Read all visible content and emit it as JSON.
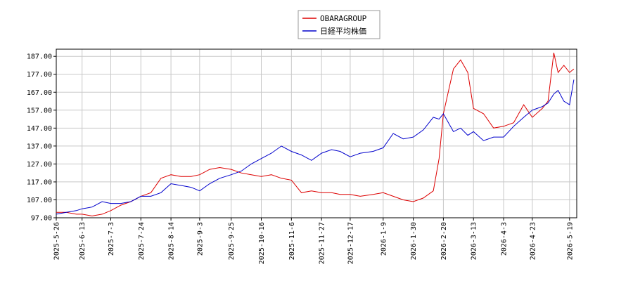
{
  "chart_data": {
    "type": "line",
    "x": [
      "2025-5-26",
      "2025-6-2",
      "2025-6-9",
      "2025-6-13",
      "2025-6-20",
      "2025-6-27",
      "2025-7-3",
      "2025-7-10",
      "2025-7-17",
      "2025-7-24",
      "2025-7-31",
      "2025-8-7",
      "2025-8-14",
      "2025-8-21",
      "2025-8-28",
      "2025-9-3",
      "2025-9-10",
      "2025-9-17",
      "2025-9-25",
      "2025-10-2",
      "2025-10-9",
      "2025-10-16",
      "2025-10-23",
      "2025-10-30",
      "2025-11-6",
      "2025-11-13",
      "2025-11-20",
      "2025-11-27",
      "2025-12-4",
      "2025-12-10",
      "2025-12-17",
      "2025-12-24",
      "2026-1-2",
      "2026-1-9",
      "2026-1-16",
      "2026-1-23",
      "2026-1-30",
      "2026-2-6",
      "2026-2-13",
      "2026-2-17",
      "2026-2-20",
      "2026-2-27",
      "2026-3-4",
      "2026-3-9",
      "2026-3-13",
      "2026-3-20",
      "2026-3-27",
      "2026-4-3",
      "2026-4-10",
      "2026-4-17",
      "2026-4-23",
      "2026-4-30",
      "2026-5-4",
      "2026-5-8",
      "2026-5-11",
      "2026-5-15",
      "2026-5-19",
      "2026-5-22"
    ],
    "series": [
      {
        "name": "OBARAGROUP",
        "color": "#dd0000",
        "values": [
          100,
          100,
          99,
          99,
          98,
          99,
          101,
          104,
          106,
          109,
          111,
          119,
          121,
          120,
          120,
          121,
          124,
          125,
          124,
          122,
          121,
          120,
          121,
          119,
          118,
          111,
          112,
          111,
          111,
          110,
          110,
          109,
          110,
          111,
          109,
          107,
          106,
          108,
          112,
          130,
          155,
          180,
          185,
          178,
          158,
          155,
          147,
          148,
          150,
          160,
          153,
          158,
          162,
          189,
          178,
          182,
          178,
          180
        ]
      },
      {
        "name": "日経平均株価",
        "color": "#0000cc",
        "values": [
          99,
          100,
          101,
          102,
          103,
          106,
          105,
          105,
          106,
          109,
          109,
          111,
          116,
          115,
          114,
          112,
          116,
          119,
          121,
          123,
          127,
          130,
          133,
          137,
          134,
          132,
          129,
          133,
          135,
          134,
          131,
          133,
          134,
          136,
          144,
          141,
          142,
          146,
          153,
          152,
          155,
          145,
          147,
          143,
          145,
          140,
          142,
          142,
          148,
          153,
          157,
          159,
          161,
          166,
          168,
          162,
          160,
          174
        ]
      }
    ],
    "xlim": [
      "2025-5-26",
      "2026-5-24"
    ],
    "xticks": [
      "2025-5-26",
      "2025-6-13",
      "2025-7-3",
      "2025-7-24",
      "2025-8-14",
      "2025-9-3",
      "2025-9-25",
      "2025-10-16",
      "2025-11-6",
      "2025-11-27",
      "2025-12-17",
      "2026-1-9",
      "2026-1-30",
      "2026-2-20",
      "2026-3-13",
      "2026-4-3",
      "2026-4-23",
      "2026-5-19"
    ],
    "ylim": [
      97,
      191
    ],
    "yticks": [
      {
        "value": 97,
        "label": "97.00"
      },
      {
        "value": 107,
        "label": "107.00"
      },
      {
        "value": 117,
        "label": "117.00"
      },
      {
        "value": 127,
        "label": "127.00"
      },
      {
        "value": 137,
        "label": "137.00"
      },
      {
        "value": 147,
        "label": "147.00"
      },
      {
        "value": 157,
        "label": "157.00"
      },
      {
        "value": 167,
        "label": "167.00"
      },
      {
        "value": 177,
        "label": "177.00"
      },
      {
        "value": 187,
        "label": "187.00"
      }
    ],
    "grid": true
  }
}
